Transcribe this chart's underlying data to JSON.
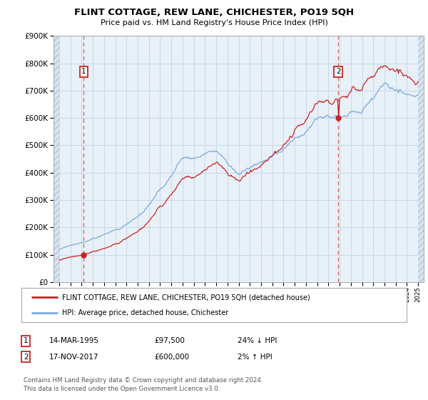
{
  "title": "FLINT COTTAGE, REW LANE, CHICHESTER, PO19 5QH",
  "subtitle": "Price paid vs. HM Land Registry's House Price Index (HPI)",
  "legend_line1": "FLINT COTTAGE, REW LANE, CHICHESTER, PO19 5QH (detached house)",
  "legend_line2": "HPI: Average price, detached house, Chichester",
  "annotation1_date": "14-MAR-1995",
  "annotation1_price": "£97,500",
  "annotation1_hpi": "24% ↓ HPI",
  "annotation2_date": "17-NOV-2017",
  "annotation2_price": "£600,000",
  "annotation2_hpi": "2% ↑ HPI",
  "footer": "Contains HM Land Registry data © Crown copyright and database right 2024.\nThis data is licensed under the Open Government Licence v3.0.",
  "sale1_year": 1995.2,
  "sale1_price": 97500,
  "sale2_year": 2017.88,
  "sale2_price": 600000,
  "hpi_color": "#7aabdd",
  "price_color": "#cc2222",
  "marker_color": "#cc2222",
  "dashed_line_color": "#dd6666",
  "grid_color": "#c8d8e8",
  "plot_bg_color": "#e8f0f8",
  "hatch_bg_color": "#d8e4f0",
  "ylim": [
    0,
    900000
  ],
  "xlim_start": 1992.5,
  "xlim_end": 2025.5,
  "start_year": 1993,
  "end_year": 2025
}
